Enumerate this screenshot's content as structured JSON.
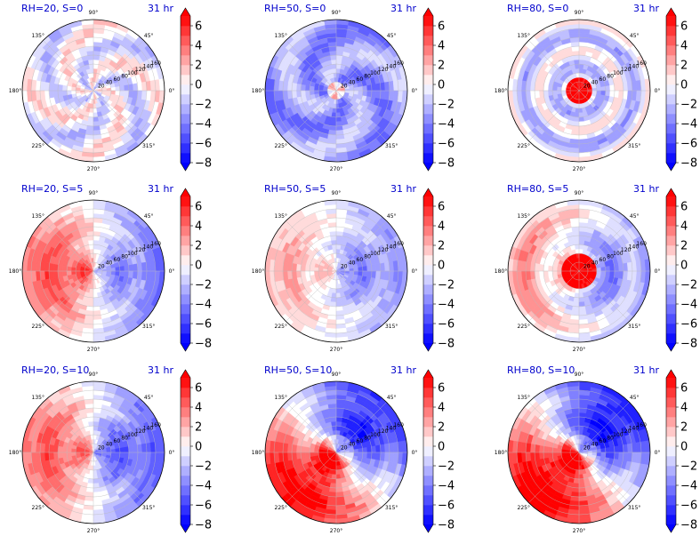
{
  "chart_data": {
    "type": "heatmap",
    "projection": "polar",
    "time_label": "31 hr",
    "theta_tick_labels": [
      "90°",
      "45°",
      "0°",
      "315°",
      "270°",
      "225°",
      "180°",
      "135°"
    ],
    "radial_tick_labels": [
      "20",
      "40",
      "60",
      "80",
      "100",
      "120",
      "140",
      "160"
    ],
    "colorbar": {
      "ticks": [
        "6",
        "4",
        "2",
        "0",
        "−2",
        "−4",
        "−6",
        "−8"
      ],
      "range": [
        -8,
        7
      ],
      "levels": [
        -8,
        -7,
        -6,
        -5,
        -4,
        -3,
        -2,
        -1,
        0,
        1,
        2,
        3,
        4,
        5,
        6,
        7
      ],
      "colormap": "bwr",
      "extend": "both",
      "low_color": "#0000ff",
      "high_color": "#ff0000"
    },
    "panels": [
      {
        "title": "RH=20, S=0",
        "time": "31 hr",
        "rh": 20,
        "s": 0,
        "center_value": 2,
        "outer_value": -2,
        "pattern": "mixed-weak"
      },
      {
        "title": "RH=50, S=0",
        "time": "31 hr",
        "rh": 50,
        "s": 0,
        "center_value": 1,
        "outer_value": -3,
        "pattern": "mostly-negative"
      },
      {
        "title": "RH=80, S=0",
        "time": "31 hr",
        "rh": 80,
        "s": 0,
        "center_value": 7,
        "outer_value": -2,
        "pattern": "strong-positive-core-rings"
      },
      {
        "title": "RH=20, S=5",
        "time": "31 hr",
        "rh": 20,
        "s": 5,
        "center_value": 5,
        "outer_value": -3,
        "pattern": "positive-west-negative-east"
      },
      {
        "title": "RH=50, S=5",
        "time": "31 hr",
        "rh": 50,
        "s": 5,
        "center_value": 1,
        "outer_value": -4,
        "pattern": "positive-west-negative-east"
      },
      {
        "title": "RH=80, S=5",
        "time": "31 hr",
        "rh": 80,
        "s": 5,
        "center_value": 7,
        "outer_value": -2,
        "pattern": "strong-positive-core"
      },
      {
        "title": "RH=20, S=10",
        "time": "31 hr",
        "rh": 20,
        "s": 10,
        "center_value": 4,
        "outer_value": -5,
        "pattern": "positive-west-negative-east"
      },
      {
        "title": "RH=50, S=10",
        "time": "31 hr",
        "rh": 50,
        "s": 10,
        "center_value": 6,
        "outer_value": -7,
        "pattern": "positive-southwest-negative-northeast"
      },
      {
        "title": "RH=80, S=10",
        "time": "31 hr",
        "rh": 80,
        "s": 10,
        "center_value": 7,
        "outer_value": -7,
        "pattern": "positive-southwest-negative-northeast"
      }
    ]
  }
}
